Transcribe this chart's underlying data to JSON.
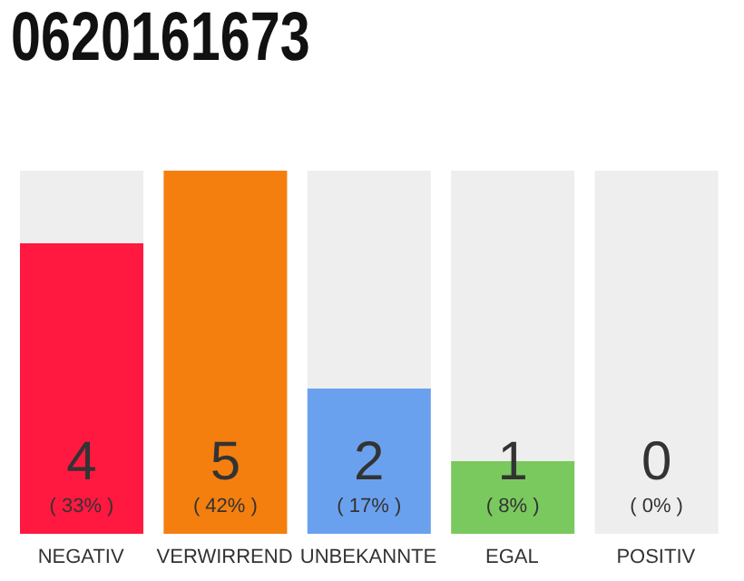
{
  "chart_data": {
    "type": "bar",
    "title": "0620161673",
    "categories": [
      "NEGATIV",
      "VERWIRREND",
      "UNBEKANNTE",
      "EGAL",
      "POSITIV"
    ],
    "values": [
      4,
      5,
      2,
      1,
      0
    ],
    "colors": [
      "#ff1940",
      "#f47f0e",
      "#6aa1ee",
      "#7ac95e",
      "#e0e0e0"
    ],
    "data_labels": true,
    "annotations": [
      "( 33% )",
      "( 42% )",
      "( 17% )",
      "( 8% )",
      "( 0% )"
    ],
    "grid": false,
    "legend": false
  }
}
